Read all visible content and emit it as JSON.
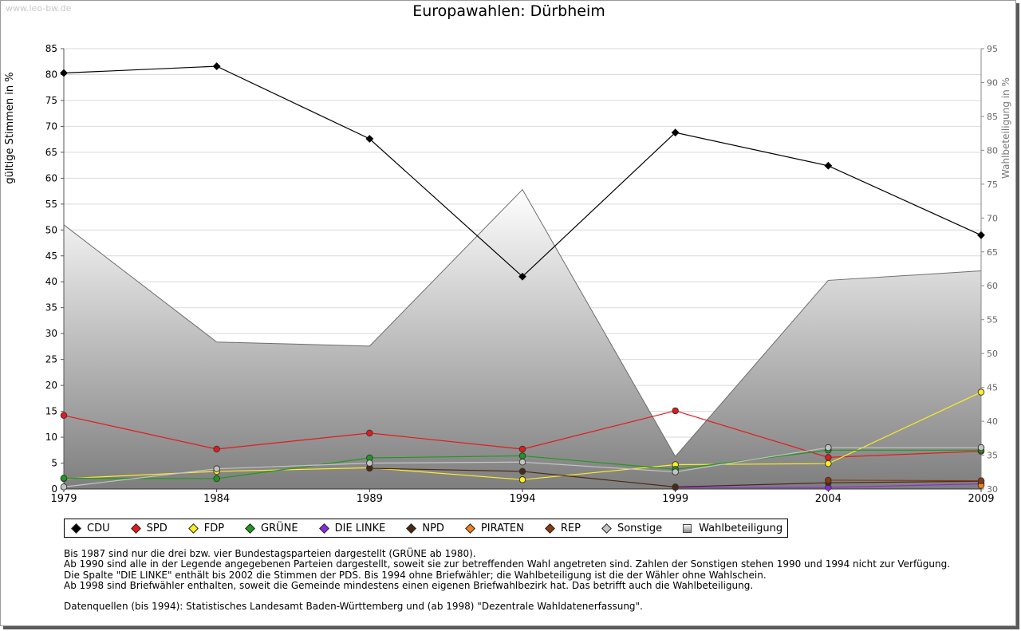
{
  "watermark": "www.leo-bw.de",
  "chart_data": {
    "type": "line",
    "title": "Europawahlen: Dürbheim",
    "ylabel": "gültige Stimmen in %",
    "y2label": "Wahlbeteiligung in %",
    "x": [
      "1979",
      "1984",
      "1989",
      "1994",
      "1999",
      "2004",
      "2009"
    ],
    "ylim": [
      0,
      85
    ],
    "yticks": [
      0,
      5,
      10,
      15,
      20,
      25,
      30,
      35,
      40,
      45,
      50,
      55,
      60,
      65,
      70,
      75,
      80,
      85
    ],
    "y2lim": [
      30,
      95
    ],
    "y2ticks": [
      30,
      35,
      40,
      45,
      50,
      55,
      60,
      65,
      70,
      75,
      80,
      85,
      90,
      95
    ],
    "grid": true,
    "legend_position": "bottom",
    "series": [
      {
        "name": "CDU",
        "color": "#000000",
        "values": [
          80.3,
          81.6,
          67.6,
          41.0,
          68.8,
          62.4,
          49.0
        ]
      },
      {
        "name": "SPD",
        "color": "#e41a1c",
        "values": [
          14.2,
          7.7,
          10.8,
          7.7,
          15.1,
          6.1,
          7.3
        ]
      },
      {
        "name": "FDP",
        "color": "#ffee22",
        "values": [
          2.0,
          3.4,
          4.1,
          1.8,
          4.7,
          4.9,
          18.7
        ]
      },
      {
        "name": "GRÜNE",
        "color": "#1d9a1d",
        "values": [
          2.1,
          2.0,
          6.0,
          6.4,
          3.8,
          7.5,
          7.5
        ]
      },
      {
        "name": "DIE LINKE",
        "color": "#8a2be2",
        "values": [
          null,
          null,
          null,
          null,
          0.3,
          0.3,
          1.0
        ]
      },
      {
        "name": "NPD",
        "color": "#4a2a14",
        "values": [
          null,
          null,
          4.0,
          3.4,
          0.4,
          1.2,
          1.5
        ]
      },
      {
        "name": "PIRATEN",
        "color": "#f08020",
        "values": [
          null,
          null,
          null,
          null,
          null,
          null,
          0.7
        ]
      },
      {
        "name": "REP",
        "color": "#8b3a10",
        "values": [
          null,
          null,
          null,
          null,
          null,
          1.7,
          1.6
        ]
      },
      {
        "name": "Sonstige",
        "color": "#c4c4c4",
        "values": [
          0.4,
          3.9,
          5.0,
          5.2,
          3.3,
          8.0,
          8.0
        ]
      }
    ],
    "turnout": {
      "name": "Wahlbeteiligung",
      "axis": "right",
      "type": "area",
      "values": [
        69.0,
        51.7,
        51.1,
        74.2,
        34.8,
        60.8,
        62.2
      ]
    }
  },
  "notes": [
    "Bis 1987 sind nur die drei bzw. vier Bundestagsparteien dargestellt (GRÜNE ab 1980).",
    "Ab 1990 sind alle in der Legende angegebenen Parteien dargestellt, soweit sie zur betreffenden Wahl angetreten sind. Zahlen der Sonstigen stehen 1990 und 1994 nicht zur Verfügung.",
    "Die Spalte \"DIE LINKE\" enthält bis 2002 die Stimmen der PDS. Bis 1994 ohne Briefwähler; die Wahlbeteiligung ist die der Wähler ohne Wahlschein.",
    "Ab 1998 sind Briefwähler enthalten, soweit die Gemeinde mindestens einen eigenen Briefwahlbezirk hat. Das betrifft auch die Wahlbeteiligung."
  ],
  "source_note": "Datenquellen (bis 1994): Statistisches Landesamt Baden-Württemberg und (ab 1998) \"Dezentrale Wahldatenerfassung\"."
}
